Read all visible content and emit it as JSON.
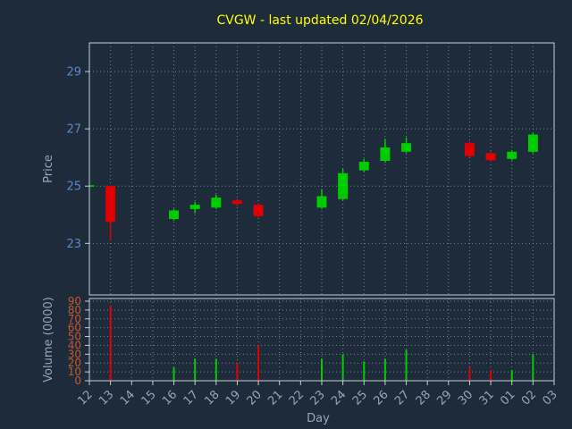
{
  "colors": {
    "background": "#1d2b3b",
    "frame": "#c6cfd9",
    "grid": "#8da0b4",
    "title": "#ffff00",
    "up": "#00cc00",
    "down": "#e00000",
    "price_tick": "#5d87c9",
    "volume_tick": "#c4572c",
    "axis_label": "#93a7bd",
    "x_tick": "#93a7bd"
  },
  "chart_data": {
    "type": "candlestick",
    "title": "CVGW - last updated 02/04/2026",
    "xlabel": "Day",
    "grid": "dotted",
    "legend": "none",
    "price_axis": {
      "label": "Price",
      "ticks": [
        23,
        25,
        27,
        29
      ],
      "range": [
        21.2,
        30.0
      ]
    },
    "volume_axis": {
      "label": "Volume (0000)",
      "ticks": [
        0,
        10,
        20,
        30,
        40,
        50,
        60,
        70,
        80,
        90
      ],
      "range": [
        0,
        93
      ]
    },
    "categories": [
      "12",
      "13",
      "14",
      "15",
      "16",
      "17",
      "18",
      "19",
      "20",
      "21",
      "22",
      "23",
      "24",
      "25",
      "26",
      "27",
      "28",
      "29",
      "30",
      "31",
      "01",
      "02",
      "03"
    ],
    "candles": [
      {
        "day": "12",
        "open": 24.98,
        "close": 25.03,
        "high": 25.05,
        "low": 24.96,
        "volume": 0
      },
      {
        "day": "13",
        "open": 25.0,
        "close": 23.75,
        "high": 25.0,
        "low": 23.1,
        "volume": 85
      },
      {
        "day": "16",
        "open": 23.85,
        "close": 24.15,
        "high": 24.2,
        "low": 23.8,
        "volume": 15
      },
      {
        "day": "17",
        "open": 24.2,
        "close": 24.35,
        "high": 24.45,
        "low": 24.05,
        "volume": 25
      },
      {
        "day": "18",
        "open": 24.25,
        "close": 24.6,
        "high": 24.7,
        "low": 24.2,
        "volume": 25
      },
      {
        "day": "19",
        "open": 24.5,
        "close": 24.38,
        "high": 24.55,
        "low": 24.3,
        "volume": 20
      },
      {
        "day": "20",
        "open": 24.35,
        "close": 23.95,
        "high": 24.4,
        "low": 23.9,
        "volume": 40
      },
      {
        "day": "23",
        "open": 24.25,
        "close": 24.65,
        "high": 24.9,
        "low": 24.2,
        "volume": 25
      },
      {
        "day": "24",
        "open": 24.55,
        "close": 25.45,
        "high": 25.6,
        "low": 24.5,
        "volume": 30
      },
      {
        "day": "25",
        "open": 25.55,
        "close": 25.85,
        "high": 25.95,
        "low": 25.5,
        "volume": 22
      },
      {
        "day": "26",
        "open": 25.88,
        "close": 26.35,
        "high": 26.65,
        "low": 25.82,
        "volume": 25
      },
      {
        "day": "27",
        "open": 26.2,
        "close": 26.5,
        "high": 26.7,
        "low": 26.15,
        "volume": 35
      },
      {
        "day": "30",
        "open": 26.5,
        "close": 26.05,
        "high": 26.55,
        "low": 26.0,
        "volume": 15
      },
      {
        "day": "31",
        "open": 26.15,
        "close": 25.9,
        "high": 26.2,
        "low": 25.85,
        "volume": 12
      },
      {
        "day": "01",
        "open": 25.95,
        "close": 26.2,
        "high": 26.25,
        "low": 25.9,
        "volume": 12
      },
      {
        "day": "02",
        "open": 26.2,
        "close": 26.8,
        "high": 26.85,
        "low": 26.15,
        "volume": 30
      }
    ]
  }
}
